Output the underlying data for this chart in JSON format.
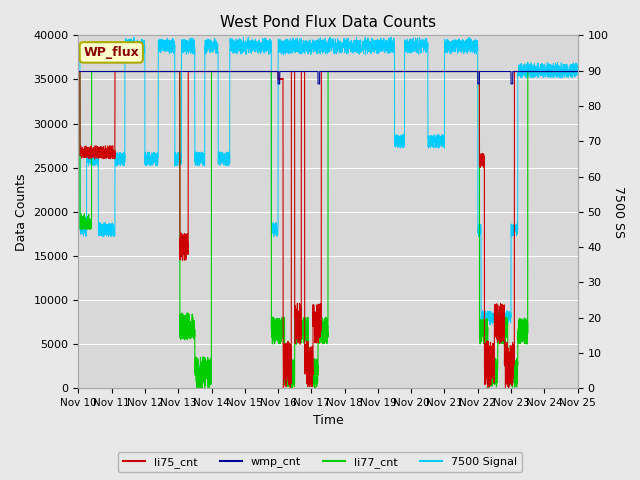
{
  "title": "West Pond Flux Data Counts",
  "xlabel": "Time",
  "ylabel_left": "Data Counts",
  "ylabel_right": "7500 SS",
  "xlim": [
    0,
    15
  ],
  "ylim_left": [
    0,
    40000
  ],
  "ylim_right": [
    0,
    100
  ],
  "x_tick_labels": [
    "Nov 10",
    "Nov 11",
    "Nov 12",
    "Nov 13",
    "Nov 14",
    "Nov 15",
    "Nov 16",
    "Nov 17",
    "Nov 18",
    "Nov 19",
    "Nov 20",
    "Nov 21",
    "Nov 22",
    "Nov 23",
    "Nov 24",
    "Nov 25"
  ],
  "legend_labels": [
    "li75_cnt",
    "wmp_cnt",
    "li77_cnt",
    "7500 Signal"
  ],
  "li75_color": "#cc0000",
  "wmp_color": "#000099",
  "li77_color": "#00cc00",
  "signal7500_color": "#00ccff",
  "annotation_text": "WP_flux",
  "annotation_box_color": "#ffffcc",
  "annotation_border_color": "#aaaa00",
  "fig_facecolor": "#e8e8e8",
  "plot_facecolor": "#d8d8d8",
  "base_val": 35900,
  "right_yticks": [
    0,
    10,
    20,
    30,
    40,
    50,
    60,
    70,
    80,
    90,
    100
  ]
}
